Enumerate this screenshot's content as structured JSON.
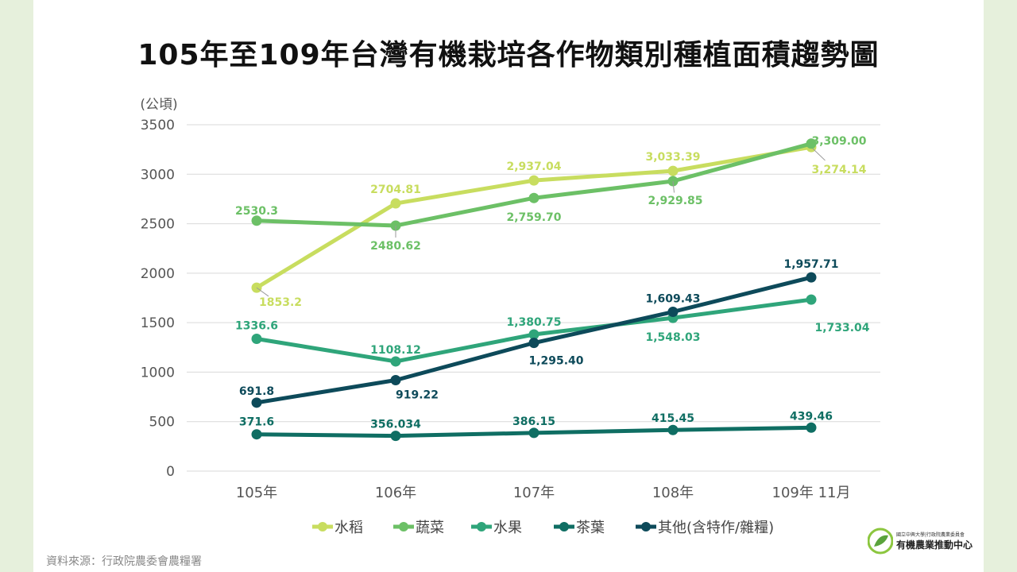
{
  "title": "105年至109年台灣有機栽培各作物類別種植面積趨勢圖",
  "source": "資料來源：行政院農委會農糧署",
  "logo": {
    "sub": "國立中興大學|行政院農業委員會",
    "main": "有機農業推動中心"
  },
  "chart_data": {
    "type": "line",
    "title": "105年至109年台灣有機栽培各作物類別種植面積趨勢圖",
    "ylabel": "(公頃)",
    "xlabel": "",
    "categories": [
      "105年",
      "106年",
      "107年",
      "108年",
      "109年 11月"
    ],
    "ylim": [
      0,
      3500
    ],
    "yticks": [
      0,
      500,
      1000,
      1500,
      2000,
      2500,
      3000,
      3500
    ],
    "grid": true,
    "legend_position": "bottom",
    "series": [
      {
        "name": "水稻",
        "color": "#c8dd5f",
        "values": [
          1853.2,
          2704.81,
          2937.04,
          3033.39,
          3274.14
        ],
        "labels": [
          "1853.2",
          "2704.81",
          "2,937.04",
          "3,033.39",
          "3,274.14"
        ]
      },
      {
        "name": "蔬菜",
        "color": "#6cc066",
        "values": [
          2530.3,
          2480.62,
          2759.7,
          2929.85,
          3309.0
        ],
        "labels": [
          "2530.3",
          "2480.62",
          "2,759.70",
          "2,929.85",
          "3,309.00"
        ]
      },
      {
        "name": "水果",
        "color": "#2fa57a",
        "values": [
          1336.6,
          1108.12,
          1380.75,
          1548.03,
          1733.04
        ],
        "labels": [
          "1336.6",
          "1108.12",
          "1,380.75",
          "1,548.03",
          "1,733.04"
        ]
      },
      {
        "name": "茶葉",
        "color": "#0f6e63",
        "values": [
          371.6,
          356.034,
          386.15,
          415.45,
          439.46
        ],
        "labels": [
          "371.6",
          "356.034",
          "386.15",
          "415.45",
          "439.46"
        ]
      },
      {
        "name": "其他(含特作/雜糧)",
        "color": "#0d4a5a",
        "values": [
          691.8,
          919.22,
          1295.4,
          1609.43,
          1957.71
        ],
        "labels": [
          "691.8",
          "919.22",
          "1,295.40",
          "1,609.43",
          "1,957.71"
        ]
      }
    ]
  }
}
